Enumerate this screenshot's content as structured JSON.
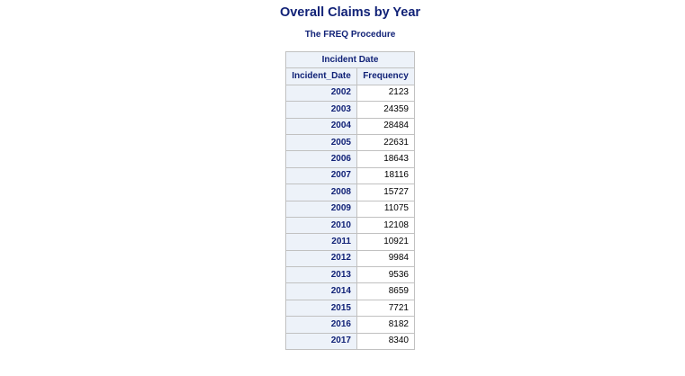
{
  "report": {
    "title": "Overall Claims by Year",
    "subtitle": "The FREQ Procedure"
  },
  "table": {
    "group_header": "Incident Date",
    "columns": [
      "Incident_Date",
      "Frequency"
    ],
    "rows": [
      {
        "year": "2002",
        "frequency": "2123"
      },
      {
        "year": "2003",
        "frequency": "24359"
      },
      {
        "year": "2004",
        "frequency": "28484"
      },
      {
        "year": "2005",
        "frequency": "22631"
      },
      {
        "year": "2006",
        "frequency": "18643"
      },
      {
        "year": "2007",
        "frequency": "18116"
      },
      {
        "year": "2008",
        "frequency": "15727"
      },
      {
        "year": "2009",
        "frequency": "11075"
      },
      {
        "year": "2010",
        "frequency": "12108"
      },
      {
        "year": "2011",
        "frequency": "10921"
      },
      {
        "year": "2012",
        "frequency": "9984"
      },
      {
        "year": "2013",
        "frequency": "9536"
      },
      {
        "year": "2014",
        "frequency": "8659"
      },
      {
        "year": "2015",
        "frequency": "7721"
      },
      {
        "year": "2016",
        "frequency": "8182"
      },
      {
        "year": "2017",
        "frequency": "8340"
      }
    ]
  },
  "colors": {
    "header_text": "#112277",
    "header_background": "#edf2f9",
    "grid": "#c1c1c1"
  }
}
